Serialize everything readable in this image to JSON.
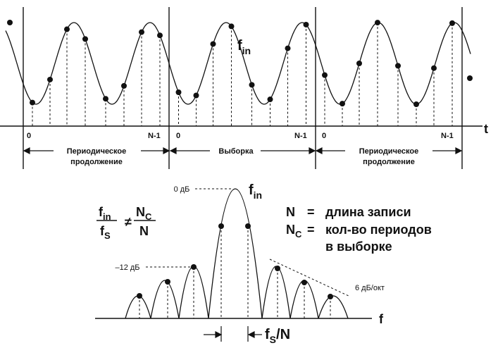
{
  "top": {
    "signal_label": "f",
    "signal_sub": "in",
    "axis_label": "t",
    "index_start": "0",
    "index_end": "N-1",
    "sections": [
      {
        "label_line1": "Периодическое",
        "label_line2": "продолжение"
      },
      {
        "label_line1": "Выборка",
        "label_line2": ""
      },
      {
        "label_line1": "Периодическое",
        "label_line2": "продолжение"
      }
    ]
  },
  "bottom": {
    "axis_label": "f",
    "peak_label": "f",
    "peak_sub": "in",
    "zero_db": "0 дБ",
    "sidelobe_db": "–12 дБ",
    "slope": "6 дБ/окт",
    "bin_width": "f",
    "bin_width_sub": "S",
    "bin_width_tail": "/N",
    "equation": {
      "lhs_num": "f",
      "lhs_num_sub": "in",
      "lhs_den": "f",
      "lhs_den_sub": "S",
      "op": "≠",
      "rhs_num": "N",
      "rhs_num_sub": "C",
      "rhs_den": "N"
    },
    "legend": [
      {
        "sym": "N",
        "sub": "",
        "eq": "=",
        "text": "длина записи"
      },
      {
        "sym": "N",
        "sub": "C",
        "eq": "=",
        "text": "кол-во периодов"
      },
      {
        "sym": "",
        "sub": "",
        "eq": "",
        "text": "в выборке"
      }
    ]
  }
}
